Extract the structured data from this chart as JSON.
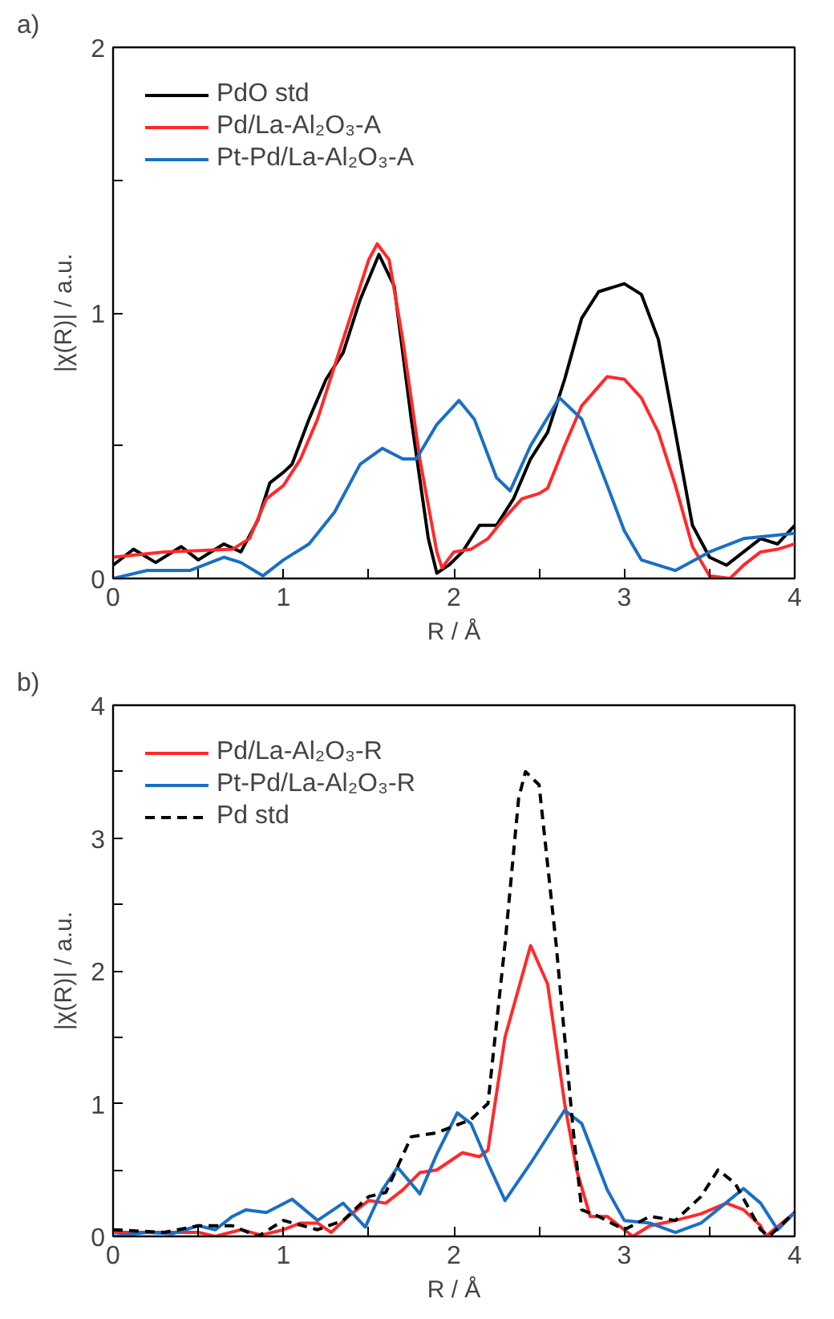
{
  "chart_data": [
    {
      "type": "line",
      "title": "a)",
      "xlabel": "R / Å",
      "ylabel": "|χ(R)| / a.u.",
      "xlim": [
        0,
        4
      ],
      "ylim": [
        0,
        2
      ],
      "xticks": [
        0,
        {
          "value": 0.5,
          "label": null
        },
        1,
        {
          "value": 1.5,
          "label": null
        },
        2,
        {
          "value": 2.5,
          "label": null
        },
        3,
        {
          "value": 3.5,
          "label": null
        },
        4
      ],
      "yticks": [
        0,
        {
          "value": 0.5,
          "label": null
        },
        1,
        {
          "value": 1.5,
          "label": null
        },
        2
      ],
      "grid": false,
      "legend": "top left",
      "line_style": "solid",
      "series": [
        {
          "name": "PdO std",
          "color": "#000000",
          "x": [
            0,
            0.12,
            0.25,
            0.4,
            0.5,
            0.65,
            0.75,
            0.85,
            0.92,
            1.0,
            1.05,
            1.15,
            1.25,
            1.35,
            1.45,
            1.56,
            1.65,
            1.75,
            1.85,
            1.9,
            1.97,
            2.05,
            2.15,
            2.25,
            2.35,
            2.45,
            2.55,
            2.65,
            2.75,
            2.85,
            3.0,
            3.1,
            3.2,
            3.3,
            3.4,
            3.5,
            3.6,
            3.7,
            3.8,
            3.9,
            4.0
          ],
          "values": [
            0.05,
            0.11,
            0.06,
            0.12,
            0.07,
            0.13,
            0.1,
            0.22,
            0.36,
            0.4,
            0.43,
            0.6,
            0.75,
            0.85,
            1.05,
            1.22,
            1.1,
            0.6,
            0.15,
            0.02,
            0.05,
            0.1,
            0.2,
            0.2,
            0.3,
            0.45,
            0.55,
            0.75,
            0.98,
            1.08,
            1.11,
            1.07,
            0.9,
            0.55,
            0.2,
            0.08,
            0.05,
            0.1,
            0.15,
            0.13,
            0.2
          ]
        },
        {
          "name": "Pd/La-Al₂O₃-A",
          "color": "#ff2a2a",
          "x": [
            0,
            0.3,
            0.7,
            0.8,
            0.9,
            1.0,
            1.1,
            1.2,
            1.3,
            1.4,
            1.5,
            1.55,
            1.62,
            1.7,
            1.8,
            1.9,
            1.93,
            2.0,
            2.1,
            2.2,
            2.3,
            2.4,
            2.5,
            2.55,
            2.65,
            2.75,
            2.9,
            3.0,
            3.1,
            3.2,
            3.3,
            3.4,
            3.5,
            3.62,
            3.7,
            3.8,
            3.9,
            4.0
          ],
          "values": [
            0.08,
            0.1,
            0.11,
            0.15,
            0.3,
            0.35,
            0.45,
            0.6,
            0.8,
            1.0,
            1.2,
            1.26,
            1.2,
            0.9,
            0.45,
            0.1,
            0.04,
            0.1,
            0.11,
            0.15,
            0.23,
            0.3,
            0.32,
            0.34,
            0.5,
            0.65,
            0.76,
            0.75,
            0.68,
            0.55,
            0.35,
            0.12,
            0.01,
            0.0,
            0.05,
            0.1,
            0.11,
            0.13
          ]
        },
        {
          "name": "Pt-Pd/La-Al₂O₃-A",
          "color": "#1a6fc4",
          "x": [
            0,
            0.2,
            0.45,
            0.65,
            0.75,
            0.88,
            1.0,
            1.15,
            1.3,
            1.45,
            1.58,
            1.7,
            1.78,
            1.9,
            2.03,
            2.12,
            2.25,
            2.33,
            2.45,
            2.62,
            2.75,
            2.9,
            3.0,
            3.1,
            3.3,
            3.5,
            3.7,
            3.85,
            4.0
          ],
          "values": [
            0.0,
            0.03,
            0.03,
            0.08,
            0.06,
            0.01,
            0.07,
            0.13,
            0.25,
            0.43,
            0.49,
            0.45,
            0.45,
            0.58,
            0.67,
            0.6,
            0.38,
            0.33,
            0.5,
            0.68,
            0.6,
            0.35,
            0.18,
            0.07,
            0.03,
            0.1,
            0.15,
            0.16,
            0.17
          ]
        }
      ]
    },
    {
      "type": "line",
      "title": "b)",
      "xlabel": "R / Å",
      "ylabel": "|χ(R)| / a.u.",
      "xlim": [
        0,
        4
      ],
      "ylim": [
        0,
        4
      ],
      "xticks": [
        0,
        {
          "value": 0.5,
          "label": null
        },
        1,
        {
          "value": 1.5,
          "label": null
        },
        2,
        {
          "value": 2.5,
          "label": null
        },
        3,
        {
          "value": 3.5,
          "label": null
        },
        4
      ],
      "yticks": [
        0,
        {
          "value": 0.5,
          "label": null
        },
        1,
        {
          "value": 1.5,
          "label": null
        },
        2,
        {
          "value": 2.5,
          "label": null
        },
        3,
        {
          "value": 3.5,
          "label": null
        },
        4
      ],
      "grid": false,
      "legend": "top left",
      "line_style": "solid",
      "series": [
        {
          "name": "Pd/La-Al₂O₃-R",
          "color": "#ff2a2a",
          "x": [
            0,
            0.3,
            0.5,
            0.6,
            0.75,
            0.87,
            1.0,
            1.1,
            1.2,
            1.28,
            1.38,
            1.5,
            1.6,
            1.7,
            1.8,
            1.9,
            2.05,
            2.15,
            2.2,
            2.3,
            2.45,
            2.55,
            2.65,
            2.72,
            2.8,
            2.9,
            3.0,
            3.05,
            3.15,
            3.3,
            3.45,
            3.6,
            3.7,
            3.8,
            3.83,
            4.0
          ],
          "values": [
            0.03,
            0.03,
            0.03,
            0.0,
            0.05,
            0.01,
            0.05,
            0.1,
            0.1,
            0.03,
            0.15,
            0.27,
            0.25,
            0.35,
            0.48,
            0.5,
            0.63,
            0.6,
            0.65,
            1.5,
            2.19,
            1.9,
            1.0,
            0.5,
            0.15,
            0.15,
            0.05,
            0.0,
            0.08,
            0.12,
            0.17,
            0.25,
            0.2,
            0.08,
            0.0,
            0.18
          ]
        },
        {
          "name": "Pt-Pd/La-Al₂O₃-R",
          "color": "#1a6fc4",
          "x": [
            0,
            0.2,
            0.35,
            0.5,
            0.6,
            0.7,
            0.78,
            0.9,
            1.05,
            1.2,
            1.35,
            1.48,
            1.58,
            1.67,
            1.8,
            1.9,
            2.02,
            2.1,
            2.2,
            2.3,
            2.45,
            2.65,
            2.75,
            2.9,
            3.0,
            3.15,
            3.3,
            3.45,
            3.7,
            3.8,
            3.9,
            4.0
          ],
          "values": [
            0.0,
            0.03,
            0.02,
            0.08,
            0.05,
            0.15,
            0.2,
            0.18,
            0.28,
            0.12,
            0.25,
            0.07,
            0.35,
            0.52,
            0.32,
            0.62,
            0.93,
            0.85,
            0.55,
            0.27,
            0.55,
            0.95,
            0.85,
            0.35,
            0.12,
            0.1,
            0.03,
            0.1,
            0.36,
            0.25,
            0.05,
            0.18
          ]
        },
        {
          "name": "Pd std",
          "color": "#000000",
          "line_style": "dashed",
          "x": [
            0,
            0.3,
            0.5,
            0.7,
            0.85,
            1.0,
            1.2,
            1.35,
            1.5,
            1.6,
            1.75,
            1.9,
            2.1,
            2.2,
            2.3,
            2.38,
            2.42,
            2.5,
            2.6,
            2.7,
            2.75,
            2.85,
            3.0,
            3.15,
            3.3,
            3.45,
            3.55,
            3.65,
            3.8,
            3.85,
            4.0
          ],
          "values": [
            0.05,
            0.03,
            0.08,
            0.08,
            0.0,
            0.12,
            0.05,
            0.12,
            0.3,
            0.33,
            0.75,
            0.78,
            0.88,
            1.0,
            2.2,
            3.3,
            3.5,
            3.4,
            2.2,
            0.8,
            0.2,
            0.15,
            0.05,
            0.15,
            0.12,
            0.3,
            0.5,
            0.4,
            0.05,
            0.0,
            0.18
          ]
        }
      ]
    }
  ]
}
